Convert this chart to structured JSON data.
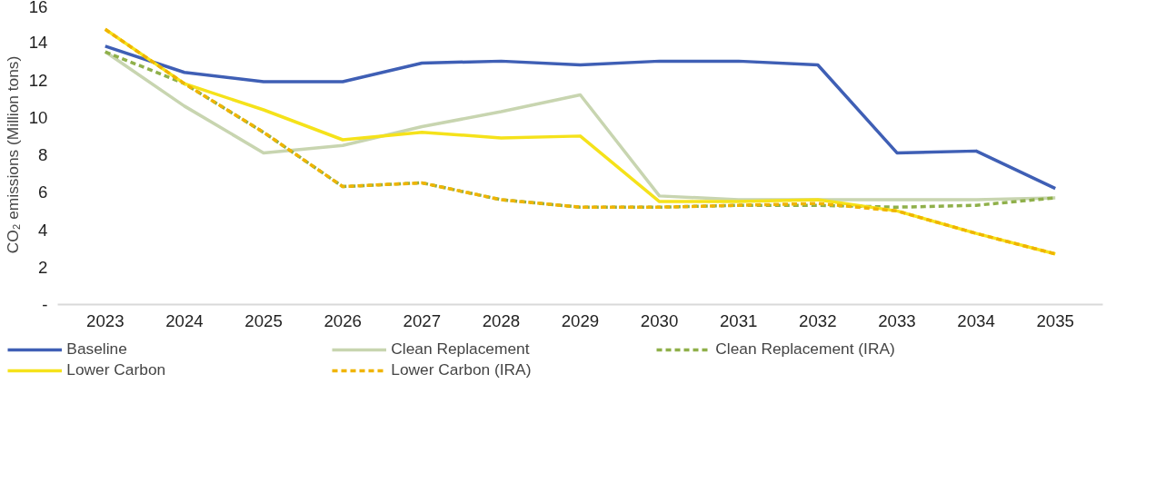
{
  "chart_data": {
    "type": "line",
    "ylabel": "CO₂ emissions (Million tons)",
    "categories": [
      "2023",
      "2024",
      "2025",
      "2026",
      "2027",
      "2028",
      "2029",
      "2030",
      "2031",
      "2032",
      "2033",
      "2034",
      "2035"
    ],
    "series": [
      {
        "name": "Baseline",
        "color": "#3f5fb5",
        "values": [
          13.8,
          12.4,
          11.9,
          11.9,
          12.9,
          13.0,
          12.8,
          13.0,
          13.0,
          12.8,
          8.1,
          8.2,
          6.2
        ]
      },
      {
        "name": "Clean Replacement",
        "color": "#c8d5b0",
        "values": [
          13.5,
          10.6,
          8.1,
          8.5,
          9.5,
          10.3,
          11.2,
          5.8,
          5.6,
          5.6,
          5.6,
          5.6,
          5.7
        ]
      },
      {
        "name": "Clean Replacement (IRA)",
        "color": "#8fb04a",
        "line_style": "dashed",
        "values": [
          13.5,
          11.8,
          9.2,
          6.3,
          6.5,
          5.6,
          5.2,
          5.2,
          5.3,
          5.3,
          5.2,
          5.3,
          5.7
        ]
      },
      {
        "name": "Lower Carbon",
        "color": "#f5e21a",
        "values": [
          14.7,
          11.8,
          10.4,
          8.8,
          9.2,
          8.9,
          9.0,
          5.5,
          5.5,
          5.6,
          5.0,
          3.8,
          2.7
        ]
      },
      {
        "name": "Lower Carbon (IRA)",
        "color": "#f0b400",
        "line_style": "dashed",
        "values": [
          14.7,
          11.8,
          9.2,
          6.3,
          6.5,
          5.6,
          5.2,
          5.2,
          5.3,
          5.4,
          5.0,
          3.8,
          2.7
        ]
      }
    ],
    "ylim": [
      0,
      16
    ],
    "yticks": [
      {
        "value": 0,
        "label": "-"
      },
      2,
      4,
      6,
      8,
      10,
      12,
      14,
      16
    ],
    "grid": false,
    "legend": "bottom",
    "line_style": "solid",
    "marker": "none"
  }
}
